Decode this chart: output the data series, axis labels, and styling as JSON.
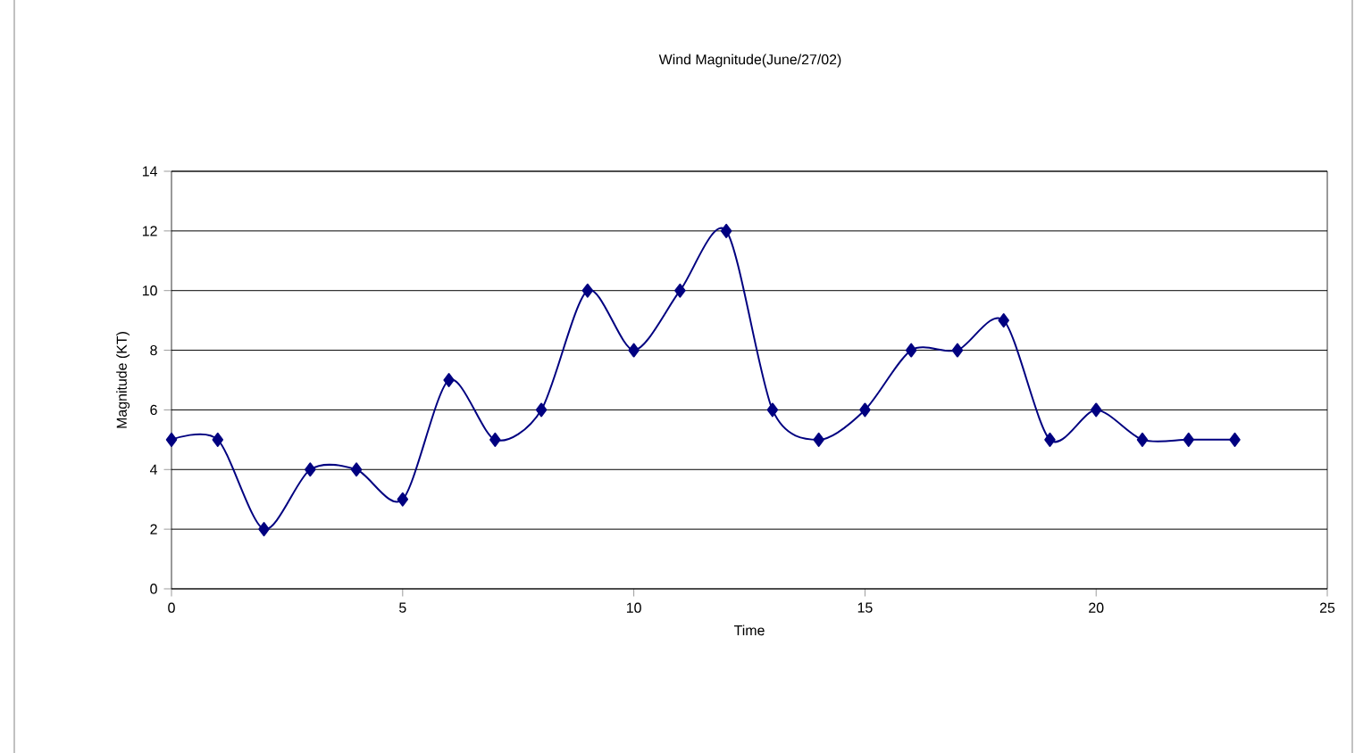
{
  "chart_data": {
    "type": "line",
    "title": "Wind Magnitude(June/27/02)",
    "xlabel": "Time",
    "ylabel": "Magnitude (KT)",
    "x": [
      0,
      1,
      2,
      3,
      4,
      5,
      6,
      7,
      8,
      9,
      10,
      11,
      12,
      13,
      14,
      15,
      16,
      17,
      18,
      19,
      20,
      21,
      22,
      23
    ],
    "series": [
      {
        "color": "#000080",
        "values": [
          5,
          5,
          2,
          4,
          4,
          3,
          7,
          5,
          6,
          10,
          8,
          10,
          12,
          6,
          5,
          6,
          8,
          8,
          9,
          5,
          6,
          5,
          5,
          5
        ]
      }
    ],
    "xlim": [
      0,
      25
    ],
    "xticks": [
      0,
      5,
      10,
      15,
      20,
      25
    ],
    "ylim": [
      0,
      14
    ],
    "yticks": [
      0,
      2,
      4,
      6,
      8,
      10,
      12,
      14
    ],
    "grid": "y",
    "marker": "diamond",
    "line_style": "solid"
  }
}
